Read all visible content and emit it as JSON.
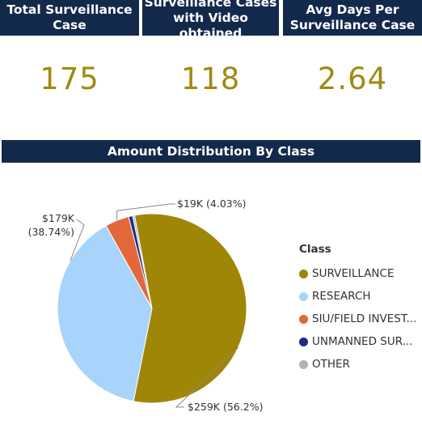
{
  "kpis": [
    {
      "title_line1": "Total Surveillance",
      "title_line2": "Case",
      "value": "175"
    },
    {
      "title_line1": "Surveillance Cases",
      "title_line2": "with Video obtained",
      "value": "118"
    },
    {
      "title_line1": "Avg Days Per",
      "title_line2": "Surveillance Case",
      "value": "2.64"
    }
  ],
  "colors": {
    "header_bg": "#13294b",
    "kpi_value": "#a08a12"
  },
  "chart_data": {
    "type": "pie",
    "title": "Amount Distribution By Class",
    "legend_title": "Class",
    "legend_position": "right",
    "slices": [
      {
        "label": "SURVEILLANCE",
        "legend_label": "SURVEILLANCE",
        "value": 259,
        "display_value": "$259K",
        "percent": 56.2,
        "percent_label": "(56.2%)",
        "color": "#a08606"
      },
      {
        "label": "RESEARCH",
        "legend_label": "RESEARCH",
        "value": 179,
        "display_value": "$179K",
        "percent": 38.74,
        "percent_label": "(38.74%)",
        "color": "#a8d4fb"
      },
      {
        "label": "SIU/FIELD INVESTIGATION",
        "legend_label": "SIU/FIELD INVEST...",
        "value": 19,
        "display_value": "$19K",
        "percent": 4.03,
        "percent_label": "(4.03%)",
        "color": "#e2683c"
      },
      {
        "label": "UNMANNED SURVEILLANCE",
        "legend_label": "UNMANNED SUR...",
        "value": 3.2,
        "display_value": "",
        "percent": 0.69,
        "percent_label": "",
        "color": "#1a2b8c"
      },
      {
        "label": "OTHER",
        "legend_label": "OTHER",
        "value": 1.6,
        "display_value": "",
        "percent": 0.34,
        "percent_label": "",
        "color": "#b3b3b3"
      }
    ]
  }
}
